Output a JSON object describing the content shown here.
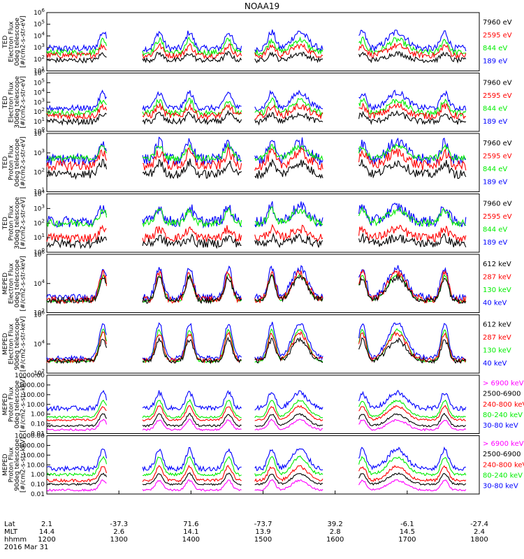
{
  "title": "NOAA19",
  "date_label": "2016 Mar 31",
  "colors": {
    "black": "#000000",
    "red": "#ff0000",
    "green": "#00ee00",
    "blue": "#0000ff",
    "magenta": "#ff00ff"
  },
  "x_axis": {
    "row_labels": [
      "Lat",
      "MLT",
      "hhmm"
    ],
    "ticks": [
      {
        "lat": "2.1",
        "mlt": "14.4",
        "hhmm": "1200"
      },
      {
        "lat": "-37.3",
        "mlt": "2.6",
        "hhmm": "1300"
      },
      {
        "lat": "71.6",
        "mlt": "14.1",
        "hhmm": "1400"
      },
      {
        "lat": "-73.7",
        "mlt": "13.9",
        "hhmm": "1500"
      },
      {
        "lat": "39.2",
        "mlt": "2.8",
        "hhmm": "1600"
      },
      {
        "lat": "-6.1",
        "mlt": "14.5",
        "hhmm": "1700"
      },
      {
        "lat": "-27.4",
        "mlt": "2.4",
        "hhmm": "1800"
      }
    ]
  },
  "chart_data": [
    {
      "type": "line",
      "instrument": "TED",
      "ylabel": [
        "TED",
        "Electron Flux",
        "0deg telescope",
        "[#/cm2-s-str-eV]"
      ],
      "scale": "log",
      "ylim": [
        1,
        1000000
      ],
      "y_ticks": [
        {
          "text": "10",
          "sup": "1"
        },
        {
          "text": "10",
          "sup": "2"
        },
        {
          "text": "10",
          "sup": "3"
        },
        {
          "text": "10",
          "sup": "4"
        },
        {
          "text": "10",
          "sup": "5"
        },
        {
          "text": "10",
          "sup": "6"
        }
      ],
      "legend": [
        {
          "label": "7960 eV",
          "color": "#000000"
        },
        {
          "label": "2595 eV",
          "color": "#ff0000"
        },
        {
          "label": "844 eV",
          "color": "#00ee00"
        },
        {
          "label": "189 eV",
          "color": "#0000ff"
        }
      ],
      "series": [
        {
          "name": "189 eV",
          "color": "#0000ff",
          "level": 2.3,
          "noise": 0.35,
          "amp": 1.7
        },
        {
          "name": "844 eV",
          "color": "#00ee00",
          "level": 1.9,
          "noise": 0.3,
          "amp": 1.3
        },
        {
          "name": "2595 eV",
          "color": "#ff0000",
          "level": 1.6,
          "noise": 0.3,
          "amp": 1.0
        },
        {
          "name": "7960 eV",
          "color": "#000000",
          "level": 1.1,
          "noise": 0.25,
          "amp": 0.7
        }
      ]
    },
    {
      "type": "line",
      "instrument": "TED",
      "ylabel": [
        "TED",
        "Electron Flux",
        "30deg telescope",
        "[#/cm2-s-str-eV]"
      ],
      "scale": "log",
      "ylim": [
        1,
        1000000
      ],
      "y_ticks": [
        {
          "text": "10",
          "sup": "0"
        },
        {
          "text": "10",
          "sup": "1"
        },
        {
          "text": "10",
          "sup": "2"
        },
        {
          "text": "10",
          "sup": "3"
        },
        {
          "text": "10",
          "sup": "4"
        },
        {
          "text": "10",
          "sup": "5"
        },
        {
          "text": "10",
          "sup": "6"
        }
      ],
      "legend": [
        {
          "label": "7960 eV",
          "color": "#000000"
        },
        {
          "label": "2595 eV",
          "color": "#ff0000"
        },
        {
          "label": "844 eV",
          "color": "#00ee00"
        },
        {
          "label": "189 eV",
          "color": "#0000ff"
        }
      ],
      "series": [
        {
          "name": "189 eV",
          "color": "#0000ff",
          "level": 2.4,
          "noise": 0.3,
          "amp": 1.6
        },
        {
          "name": "844 eV",
          "color": "#00ee00",
          "level": 1.9,
          "noise": 0.3,
          "amp": 1.3
        },
        {
          "name": "2595 eV",
          "color": "#ff0000",
          "level": 1.6,
          "noise": 0.35,
          "amp": 1.0
        },
        {
          "name": "7960 eV",
          "color": "#000000",
          "level": 1.0,
          "noise": 0.3,
          "amp": 0.8
        }
      ]
    },
    {
      "type": "line",
      "instrument": "TED",
      "ylabel": [
        "TED",
        "Proton Flux",
        "0deg telescope",
        "[#/cm2-s-str-eV]"
      ],
      "scale": "log",
      "ylim": [
        1,
        10000
      ],
      "y_ticks": [
        {
          "text": "10",
          "sup": "1"
        },
        {
          "text": "10",
          "sup": "2"
        },
        {
          "text": "10",
          "sup": "3"
        },
        {
          "text": "10",
          "sup": "4"
        }
      ],
      "legend": [
        {
          "label": "7960 eV",
          "color": "#000000"
        },
        {
          "label": "2595 eV",
          "color": "#ff0000"
        },
        {
          "label": "844 eV",
          "color": "#00ee00"
        },
        {
          "label": "189 eV",
          "color": "#0000ff"
        }
      ],
      "series": [
        {
          "name": "189 eV",
          "color": "#0000ff",
          "level": 2.2,
          "noise": 0.4,
          "amp": 1.2
        },
        {
          "name": "844 eV",
          "color": "#00ee00",
          "level": 2.3,
          "noise": 0.2,
          "amp": 0.8
        },
        {
          "name": "2595 eV",
          "color": "#ff0000",
          "level": 1.8,
          "noise": 0.35,
          "amp": 0.9
        },
        {
          "name": "7960 eV",
          "color": "#000000",
          "level": 1.2,
          "noise": 0.3,
          "amp": 0.8
        }
      ]
    },
    {
      "type": "line",
      "instrument": "TED",
      "ylabel": [
        "TED",
        "Proton Flux",
        "30deg telescope",
        "[#/cm2-s-str-eV]"
      ],
      "scale": "log",
      "ylim": [
        1,
        10000
      ],
      "y_ticks": [
        {
          "text": "10",
          "sup": "0"
        },
        {
          "text": "10",
          "sup": "1"
        },
        {
          "text": "10",
          "sup": "2"
        },
        {
          "text": "10",
          "sup": "3"
        },
        {
          "text": "10",
          "sup": "4"
        }
      ],
      "legend": [
        {
          "label": "7960 eV",
          "color": "#000000"
        },
        {
          "label": "2595 eV",
          "color": "#ff0000"
        },
        {
          "label": "844 eV",
          "color": "#00ee00"
        },
        {
          "label": "189 eV",
          "color": "#0000ff"
        }
      ],
      "series": [
        {
          "name": "189 eV",
          "color": "#0000ff",
          "level": 2.1,
          "noise": 0.4,
          "amp": 1.0
        },
        {
          "name": "844 eV",
          "color": "#00ee00",
          "level": 2.0,
          "noise": 0.25,
          "amp": 0.9
        },
        {
          "name": "2595 eV",
          "color": "#ff0000",
          "level": 1.0,
          "noise": 0.3,
          "amp": 0.6
        },
        {
          "name": "7960 eV",
          "color": "#000000",
          "level": 0.6,
          "noise": 0.3,
          "amp": 0.4
        }
      ]
    },
    {
      "type": "line",
      "instrument": "MEPED",
      "ylabel": [
        "MEPED",
        "Electron Flux",
        "0deg telescope",
        "[#/cm2-s-str-keV]"
      ],
      "scale": "log",
      "ylim": [
        10,
        1000000
      ],
      "y_ticks": [
        {
          "text": "10",
          "sup": "2"
        },
        {
          "text": "10",
          "sup": "4"
        },
        {
          "text": "10",
          "sup": "6"
        }
      ],
      "legend": [
        {
          "label": "612 keV",
          "color": "#000000"
        },
        {
          "label": "287 keV",
          "color": "#ff0000"
        },
        {
          "label": "130 keV",
          "color": "#00ee00"
        },
        {
          "label": "40 keV",
          "color": "#0000ff"
        }
      ],
      "series": [
        {
          "name": "40 keV",
          "color": "#0000ff",
          "level": 2.3,
          "noise": 0.3,
          "amp": 2.5
        },
        {
          "name": "130 keV",
          "color": "#00ee00",
          "level": 2.0,
          "noise": 0.1,
          "amp": 2.2
        },
        {
          "name": "287 keV",
          "color": "#ff0000",
          "level": 2.1,
          "noise": 0.3,
          "amp": 2.3
        },
        {
          "name": "612 keV",
          "color": "#000000",
          "level": 2.05,
          "noise": 0.25,
          "amp": 2.0
        }
      ]
    },
    {
      "type": "line",
      "instrument": "MEPED",
      "ylabel": [
        "MEPED",
        "Electron Flux",
        "90deg telescope",
        "[#/cm2-s-str-keV]"
      ],
      "scale": "log",
      "ylim": [
        10,
        1000000
      ],
      "y_ticks": [
        {
          "text": "10",
          "sup": "2"
        },
        {
          "text": "10",
          "sup": "4"
        },
        {
          "text": "10",
          "sup": "6"
        }
      ],
      "legend": [
        {
          "label": "612 keV",
          "color": "#000000"
        },
        {
          "label": "287 keV",
          "color": "#ff0000"
        },
        {
          "label": "130 keV",
          "color": "#00ee00"
        },
        {
          "label": "40 keV",
          "color": "#0000ff"
        }
      ],
      "series": [
        {
          "name": "40 keV",
          "color": "#0000ff",
          "level": 2.3,
          "noise": 0.2,
          "amp": 3.0
        },
        {
          "name": "130 keV",
          "color": "#00ee00",
          "level": 2.0,
          "noise": 0.1,
          "amp": 2.7
        },
        {
          "name": "287 keV",
          "color": "#ff0000",
          "level": 2.1,
          "noise": 0.2,
          "amp": 2.3
        },
        {
          "name": "612 keV",
          "color": "#000000",
          "level": 2.05,
          "noise": 0.2,
          "amp": 1.8
        }
      ]
    },
    {
      "type": "line",
      "instrument": "MEPED",
      "ylabel": [
        "MEPED",
        "Proton Flux",
        "0deg telescope",
        "[#/cm2-s-str-keV]"
      ],
      "scale": "log",
      "ylim": [
        0.01,
        10000
      ],
      "y_ticks": [
        {
          "text": "0.01"
        },
        {
          "text": "0.10"
        },
        {
          "text": "1.00"
        },
        {
          "text": "10.00"
        },
        {
          "text": "100.00"
        },
        {
          "text": "1000.00"
        },
        {
          "text": "10000.00"
        }
      ],
      "legend": [
        {
          "label": "> 6900 keV",
          "color": "#ff00ff"
        },
        {
          "label": "2500-6900",
          "color": "#000000"
        },
        {
          "label": "240-800 keV",
          "color": "#ff0000"
        },
        {
          "label": "80-240 keV",
          "color": "#00ee00"
        },
        {
          "label": "30-80 keV",
          "color": "#0000ff"
        }
      ],
      "series": [
        {
          "name": "30-80 keV",
          "color": "#0000ff",
          "level": 0.6,
          "noise": 0.25,
          "amp": 1.6
        },
        {
          "name": "80-240 keV",
          "color": "#00ee00",
          "level": -0.3,
          "noise": 0.1,
          "amp": 1.7
        },
        {
          "name": "240-800 keV",
          "color": "#ff0000",
          "level": -0.6,
          "noise": 0.1,
          "amp": 1.4
        },
        {
          "name": "2500-6900",
          "color": "#000000",
          "level": -1.2,
          "noise": 0.1,
          "amp": 1.2
        },
        {
          "name": "> 6900 keV",
          "color": "#ff00ff",
          "level": -1.6,
          "noise": 0.1,
          "amp": 1.0
        }
      ]
    },
    {
      "type": "line",
      "instrument": "MEPED",
      "ylabel": [
        "MEPED",
        "Proton Flux",
        "90deg telescope",
        "[#/cm2-s-str-keV]"
      ],
      "scale": "log",
      "ylim": [
        0.01,
        10000
      ],
      "y_ticks": [
        {
          "text": "0.01"
        },
        {
          "text": "0.10"
        },
        {
          "text": "1.00"
        },
        {
          "text": "10.00"
        },
        {
          "text": "100.00"
        },
        {
          "text": "1000.00"
        },
        {
          "text": "10000.00"
        }
      ],
      "legend": [
        {
          "label": "> 6900 keV",
          "color": "#ff00ff"
        },
        {
          "label": "2500-6900",
          "color": "#000000"
        },
        {
          "label": "240-800 keV",
          "color": "#ff0000"
        },
        {
          "label": "80-240 keV",
          "color": "#00ee00"
        },
        {
          "label": "30-80 keV",
          "color": "#0000ff"
        }
      ],
      "series": [
        {
          "name": "30-80 keV",
          "color": "#0000ff",
          "level": 0.6,
          "noise": 0.25,
          "amp": 2.0
        },
        {
          "name": "80-240 keV",
          "color": "#00ee00",
          "level": 0.0,
          "noise": 0.15,
          "amp": 1.8
        },
        {
          "name": "240-800 keV",
          "color": "#ff0000",
          "level": -0.6,
          "noise": 0.15,
          "amp": 1.4
        },
        {
          "name": "2500-6900",
          "color": "#000000",
          "level": -1.0,
          "noise": 0.1,
          "amp": 1.1
        },
        {
          "name": "> 6900 keV",
          "color": "#ff00ff",
          "level": -1.6,
          "noise": 0.1,
          "amp": 1.0
        }
      ]
    }
  ],
  "events": [
    {
      "t": 0.13,
      "width": 0.012
    },
    {
      "t": 0.26,
      "width": 0.012
    },
    {
      "t": 0.33,
      "width": 0.012
    },
    {
      "t": 0.42,
      "width": 0.012
    },
    {
      "t": 0.52,
      "width": 0.012
    },
    {
      "t": 0.585,
      "width": 0.025
    },
    {
      "t": 0.73,
      "width": 0.012
    },
    {
      "t": 0.81,
      "width": 0.03
    },
    {
      "t": 0.92,
      "width": 0.012
    }
  ],
  "passes": [
    {
      "start": 0.0,
      "end": 0.14
    },
    {
      "start": 0.22,
      "end": 0.45
    },
    {
      "start": 0.48,
      "end": 0.64
    },
    {
      "start": 0.72,
      "end": 0.97
    }
  ]
}
